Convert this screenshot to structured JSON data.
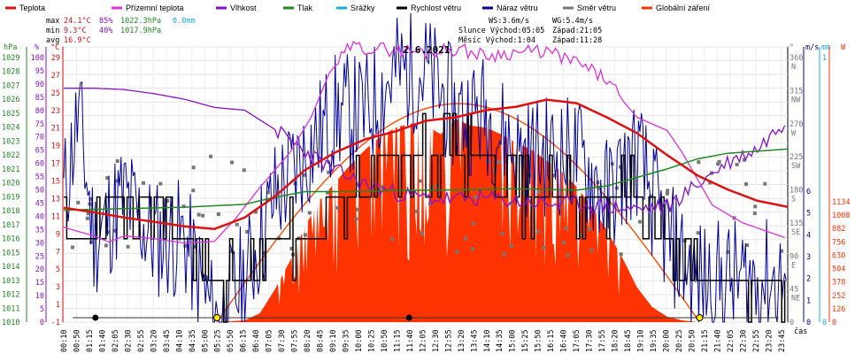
{
  "chart_data": {
    "type": "line",
    "title": "2.6.2021",
    "colors": {
      "temperature": "#dd1111",
      "feels_like": "#dd33dd",
      "humidity": "#8811cc",
      "pressure": "#228822",
      "rain": "#22aadd",
      "wind_speed": "#000000",
      "wind_gust": "#000099",
      "wind_dir": "#777777",
      "radiation": "#ff3300",
      "radiation_theory": "#ff5511"
    },
    "legend": [
      "Teplota",
      "Přízemní teplota",
      "Vlhkost",
      "Tlak",
      "Srážky",
      "Rychlost větru",
      "Náraz větru",
      "Směr větru",
      "Globální záření"
    ],
    "stats": {
      "max_label": "max",
      "max_temp": "24.1°C",
      "max_hum": "85%",
      "max_press": "1022.3hPa",
      "max_rain": "0.0mm",
      "min_label": "min",
      "min_temp": "9.3°C",
      "min_hum": "40%",
      "min_press": "1017.9hPa",
      "avg_label": "avg",
      "avg_temp": "16.9°C",
      "ws": "WS:3.6m/s",
      "wg": "WG:5.4m/s",
      "sun": "Slunce Východ:05:05",
      "sun_set": "Západ:21:05",
      "moon": "Měsíc Východ:1:04",
      "moon_set": "Západ:11:28"
    },
    "axes": {
      "hpa_unit": "hPa",
      "pct_unit": "%",
      "temp_unit": "°C",
      "dir_unit": "°",
      "ms_unit": "m/s",
      "mm_unit": "mm",
      "w_unit": "W",
      "x_unit": "čas",
      "hpa_ticks": [
        "1029",
        "1028",
        "1027",
        "1026",
        "1025",
        "1024",
        "1023",
        "1022",
        "1021",
        "1020",
        "1019",
        "1018",
        "1017",
        "1016",
        "1015",
        "1014",
        "1013",
        "1012",
        "1011",
        "1010"
      ],
      "pct_ticks": [
        "100",
        "95",
        "90",
        "85",
        "80",
        "75",
        "70",
        "65",
        "60",
        "55",
        "50",
        "45",
        "40",
        "35",
        "30",
        "25",
        "20",
        "15",
        "10",
        "5",
        "0"
      ],
      "temp_ticks": [
        "29",
        "27",
        "25",
        "23",
        "21",
        "19",
        "17",
        "15",
        "13",
        "11",
        "9",
        "7",
        "5",
        "3",
        "1",
        "-1"
      ],
      "dir_ticks": [
        "360\nN",
        "315\nNW",
        "270\nW",
        "225\nSW",
        "180\nS",
        "135\nSE",
        "90\nE",
        "45\nNE",
        "0"
      ],
      "ms_ticks": [
        "6",
        "5",
        "4",
        "3",
        "2",
        "1",
        "0"
      ],
      "mm_ticks": [
        "1",
        "0"
      ],
      "w_ticks": [
        "1134",
        "1008",
        "882",
        "756",
        "630",
        "504",
        "378",
        "252",
        "126",
        "0"
      ],
      "x_ticks": [
        "00:10",
        "00:50",
        "01:15",
        "01:40",
        "02:05",
        "02:30",
        "02:55",
        "03:20",
        "03:45",
        "04:10",
        "04:35",
        "05:00",
        "05:25",
        "05:50",
        "06:15",
        "06:40",
        "07:05",
        "07:30",
        "07:55",
        "08:20",
        "08:45",
        "09:10",
        "09:35",
        "10:00",
        "10:25",
        "10:50",
        "11:15",
        "11:40",
        "12:05",
        "12:30",
        "12:55",
        "13:20",
        "13:45",
        "14:10",
        "14:35",
        "15:00",
        "15:25",
        "15:50",
        "16:15",
        "16:40",
        "17:05",
        "17:30",
        "17:55",
        "18:20",
        "18:45",
        "19:10",
        "19:35",
        "20:00",
        "20:25",
        "20:50",
        "21:15",
        "21:40",
        "22:05",
        "22:30",
        "22:55",
        "23:20",
        "23:45"
      ]
    },
    "x_range_hours": [
      0,
      24
    ],
    "temperature": [
      [
        0,
        11.7
      ],
      [
        1,
        11.2
      ],
      [
        2,
        10.6
      ],
      [
        3,
        10.1
      ],
      [
        4,
        9.6
      ],
      [
        5,
        9.3
      ],
      [
        6,
        10.6
      ],
      [
        7,
        13.0
      ],
      [
        8,
        16.0
      ],
      [
        9,
        18.0
      ],
      [
        10,
        19.5
      ],
      [
        11,
        20.4
      ],
      [
        12,
        21.6
      ],
      [
        13,
        22.0
      ],
      [
        14,
        22.8
      ],
      [
        15,
        23.2
      ],
      [
        16,
        24.0
      ],
      [
        17,
        23.6
      ],
      [
        18,
        22.0
      ],
      [
        19,
        20.2
      ],
      [
        20,
        17.7
      ],
      [
        21,
        15.4
      ],
      [
        22,
        13.8
      ],
      [
        23,
        12.5
      ],
      [
        24,
        11.8
      ]
    ],
    "feels_like": [
      [
        0,
        9.5
      ],
      [
        1,
        8.5
      ],
      [
        1.5,
        7.8
      ],
      [
        2,
        8.5
      ],
      [
        3,
        8.2
      ],
      [
        4,
        7.7
      ],
      [
        5,
        7.9
      ],
      [
        5.7,
        10.5
      ],
      [
        6.5,
        14
      ],
      [
        7.5,
        18
      ],
      [
        8.2,
        22
      ],
      [
        8.8,
        27
      ],
      [
        9.5,
        30
      ],
      [
        10.5,
        29.8
      ],
      [
        12,
        29.4
      ],
      [
        13,
        29.8
      ],
      [
        14,
        29
      ],
      [
        15,
        29.4
      ],
      [
        16,
        29.5
      ],
      [
        17,
        28.2
      ],
      [
        18,
        26.3
      ],
      [
        18.5,
        24
      ],
      [
        19,
        22
      ],
      [
        20,
        20.5
      ],
      [
        20.5,
        18
      ],
      [
        21.5,
        12
      ],
      [
        22.5,
        10
      ],
      [
        24,
        8.2
      ]
    ],
    "humidity": [
      [
        0,
        85
      ],
      [
        1,
        85
      ],
      [
        2,
        84.5
      ],
      [
        3,
        83
      ],
      [
        4,
        81
      ],
      [
        5,
        78
      ],
      [
        6,
        77
      ],
      [
        7,
        70
      ],
      [
        8,
        62
      ],
      [
        9,
        55
      ],
      [
        10,
        50
      ],
      [
        11,
        47
      ],
      [
        12,
        45
      ],
      [
        13,
        44.5
      ],
      [
        14,
        45
      ],
      [
        15,
        44
      ],
      [
        16,
        43
      ],
      [
        17,
        43
      ],
      [
        18,
        42
      ],
      [
        19,
        41
      ],
      [
        20,
        42
      ],
      [
        21,
        50
      ],
      [
        22,
        58
      ],
      [
        23,
        63
      ],
      [
        24,
        74
      ]
    ],
    "pressure": [
      [
        0,
        1017.9
      ],
      [
        2,
        1018.0
      ],
      [
        4,
        1018.1
      ],
      [
        6,
        1018.3
      ],
      [
        7,
        1018.8
      ],
      [
        8,
        1019.2
      ],
      [
        9,
        1019.2
      ],
      [
        12,
        1019.3
      ],
      [
        15,
        1019.4
      ],
      [
        17,
        1019.3
      ],
      [
        18,
        1019.6
      ],
      [
        19,
        1020.2
      ],
      [
        20,
        1020.8
      ],
      [
        21,
        1021.5
      ],
      [
        22,
        1021.9
      ],
      [
        24,
        1022.2
      ]
    ],
    "radiation_theory_peak": 1000,
    "radiation": [
      [
        5.1,
        0
      ],
      [
        6,
        8
      ],
      [
        6.5,
        40
      ],
      [
        7,
        150
      ],
      [
        7.5,
        280
      ],
      [
        8,
        440
      ],
      [
        8.5,
        560
      ],
      [
        9,
        640
      ],
      [
        9.5,
        720
      ],
      [
        10,
        790
      ],
      [
        10.5,
        850
      ],
      [
        11,
        890
      ],
      [
        11.5,
        910
      ],
      [
        12,
        900
      ],
      [
        12.5,
        860
      ],
      [
        13,
        930
      ],
      [
        13.5,
        900
      ],
      [
        14,
        890
      ],
      [
        14.5,
        860
      ],
      [
        15,
        820
      ],
      [
        15.5,
        790
      ],
      [
        16,
        740
      ],
      [
        16.5,
        690
      ],
      [
        17,
        620
      ],
      [
        17.5,
        530
      ],
      [
        18,
        420
      ],
      [
        18.5,
        300
      ],
      [
        19,
        160
      ],
      [
        19.5,
        70
      ],
      [
        20,
        25
      ],
      [
        20.5,
        8
      ],
      [
        21,
        0
      ]
    ],
    "wind_speed": [
      [
        0,
        2
      ],
      [
        1,
        2
      ],
      [
        2,
        3
      ],
      [
        3,
        3
      ],
      [
        4,
        2
      ],
      [
        5,
        1
      ],
      [
        6,
        1
      ],
      [
        7,
        2
      ],
      [
        8,
        2
      ],
      [
        9,
        3
      ],
      [
        10,
        3
      ],
      [
        11,
        4
      ],
      [
        12,
        4
      ],
      [
        13,
        4
      ],
      [
        14,
        4
      ],
      [
        15,
        3
      ],
      [
        16,
        3
      ],
      [
        17,
        3
      ],
      [
        18,
        3
      ],
      [
        19,
        3
      ],
      [
        20,
        2
      ],
      [
        21,
        1
      ],
      [
        22,
        1
      ],
      [
        23,
        1
      ],
      [
        24,
        1
      ]
    ],
    "wind_gust": [
      [
        0,
        3
      ],
      [
        0.5,
        5
      ],
      [
        1,
        2
      ],
      [
        2,
        3
      ],
      [
        3,
        2
      ],
      [
        4,
        2
      ],
      [
        5,
        0
      ],
      [
        6,
        1
      ],
      [
        7,
        3
      ],
      [
        8,
        4
      ],
      [
        9,
        5
      ],
      [
        10,
        5
      ],
      [
        11,
        6
      ],
      [
        12,
        6
      ],
      [
        13,
        5
      ],
      [
        14,
        5
      ],
      [
        15,
        4
      ],
      [
        16,
        4
      ],
      [
        17,
        4
      ],
      [
        18,
        3
      ],
      [
        19,
        4
      ],
      [
        20,
        2
      ],
      [
        21,
        1
      ],
      [
        22,
        1
      ],
      [
        23,
        1
      ],
      [
        24,
        1
      ]
    ],
    "wind_dir_points": 110
  }
}
